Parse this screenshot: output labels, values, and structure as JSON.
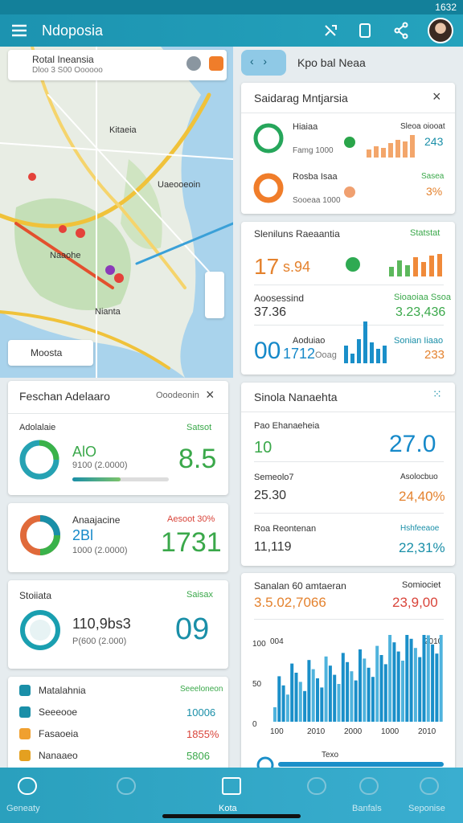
{
  "status_bar": {
    "time": "1632"
  },
  "app_bar": {
    "title": "Ndoposia"
  },
  "map": {
    "search_title": "Rotal Ineansia",
    "search_subtitle": "Dloo 3 S00 Oooooo",
    "labels": [
      "Kitaeia",
      "Uaeooeoin",
      "Naaohe",
      "Nianta"
    ],
    "dropdown": "Moosta"
  },
  "left_cards": [
    {
      "title": "Feschan Adelaaro",
      "action": "Ooodeonin",
      "label": "Adolalaie",
      "tag": "Satsot",
      "value": "AlO",
      "detail": "9100 (2.0000)",
      "big": "8.5"
    },
    {
      "title": "Anaajacine",
      "tag": "Aesoot 30%",
      "value": "2Bl",
      "detail": "1000 (2.0000)",
      "big": "1731"
    },
    {
      "title": "Stoiiata",
      "tag": "Saisax",
      "value": "110,9bs3",
      "detail": "P(600 (2.000)",
      "big": "09"
    },
    {
      "rows": [
        {
          "label": "Matalahnia",
          "value": "Seeeloneon"
        },
        {
          "label": "Seeeooe",
          "value": "10006"
        },
        {
          "label": "Fasaoeia",
          "value": "1855%"
        },
        {
          "label": "Nanaaeo",
          "value": "5806"
        }
      ]
    }
  ],
  "right_header": {
    "title": "Kpo bal Neaa"
  },
  "right_cards": [
    {
      "title": "Saidarag Mntjarsia",
      "rows": [
        {
          "name": "Hiaiaa",
          "sub": "Famg 1000",
          "tag": "Sleoa oiooat",
          "value": "243"
        },
        {
          "name": "Rosba Isaa",
          "sub": "Sooeaa 1000",
          "tag": "Sasea",
          "value": "3%"
        }
      ]
    },
    {
      "title": "Sleniluns Raeaantia",
      "tag": "Statstat",
      "big": "17",
      "small": "s.94",
      "label": "Aoosessind",
      "tag2": "Sioaoiaa Ssoa",
      "v1": "37.36",
      "v2": "3.23,436",
      "big2": "00",
      "mid": "1712",
      "unit": "Ooag",
      "label3": "Aoduiao",
      "tag3": "Sonian Iiaao",
      "v3": "233"
    },
    {
      "title": "Sinola Nanaehta",
      "rows": [
        {
          "label": "Pao Ehanaeheia",
          "tag": "",
          "v1": "10",
          "v2": "27.0"
        },
        {
          "label": "Semeolo7",
          "tag": "Asolocbuo",
          "v1": "25.30",
          "v2": "24,40%"
        },
        {
          "label": "Roa Reontenan",
          "tag": "Hshfeeaoe",
          "v1": "11,119",
          "v2": "22,31%"
        }
      ]
    },
    {
      "title": "Sanalan 60 amtaeran",
      "tag": "Somiociet",
      "v1": "3.5.02,7066",
      "v2": "23,9,00",
      "corner_left": "004",
      "corner_right": "2010",
      "yticks": [
        "100",
        "50",
        "0"
      ],
      "xticks": [
        "100",
        "2010",
        "2000",
        "1000",
        "2010"
      ],
      "footer": "Texo"
    }
  ],
  "bottom_nav": [
    "Geneaty",
    "Kota",
    "Banfals",
    "Seponise"
  ]
}
